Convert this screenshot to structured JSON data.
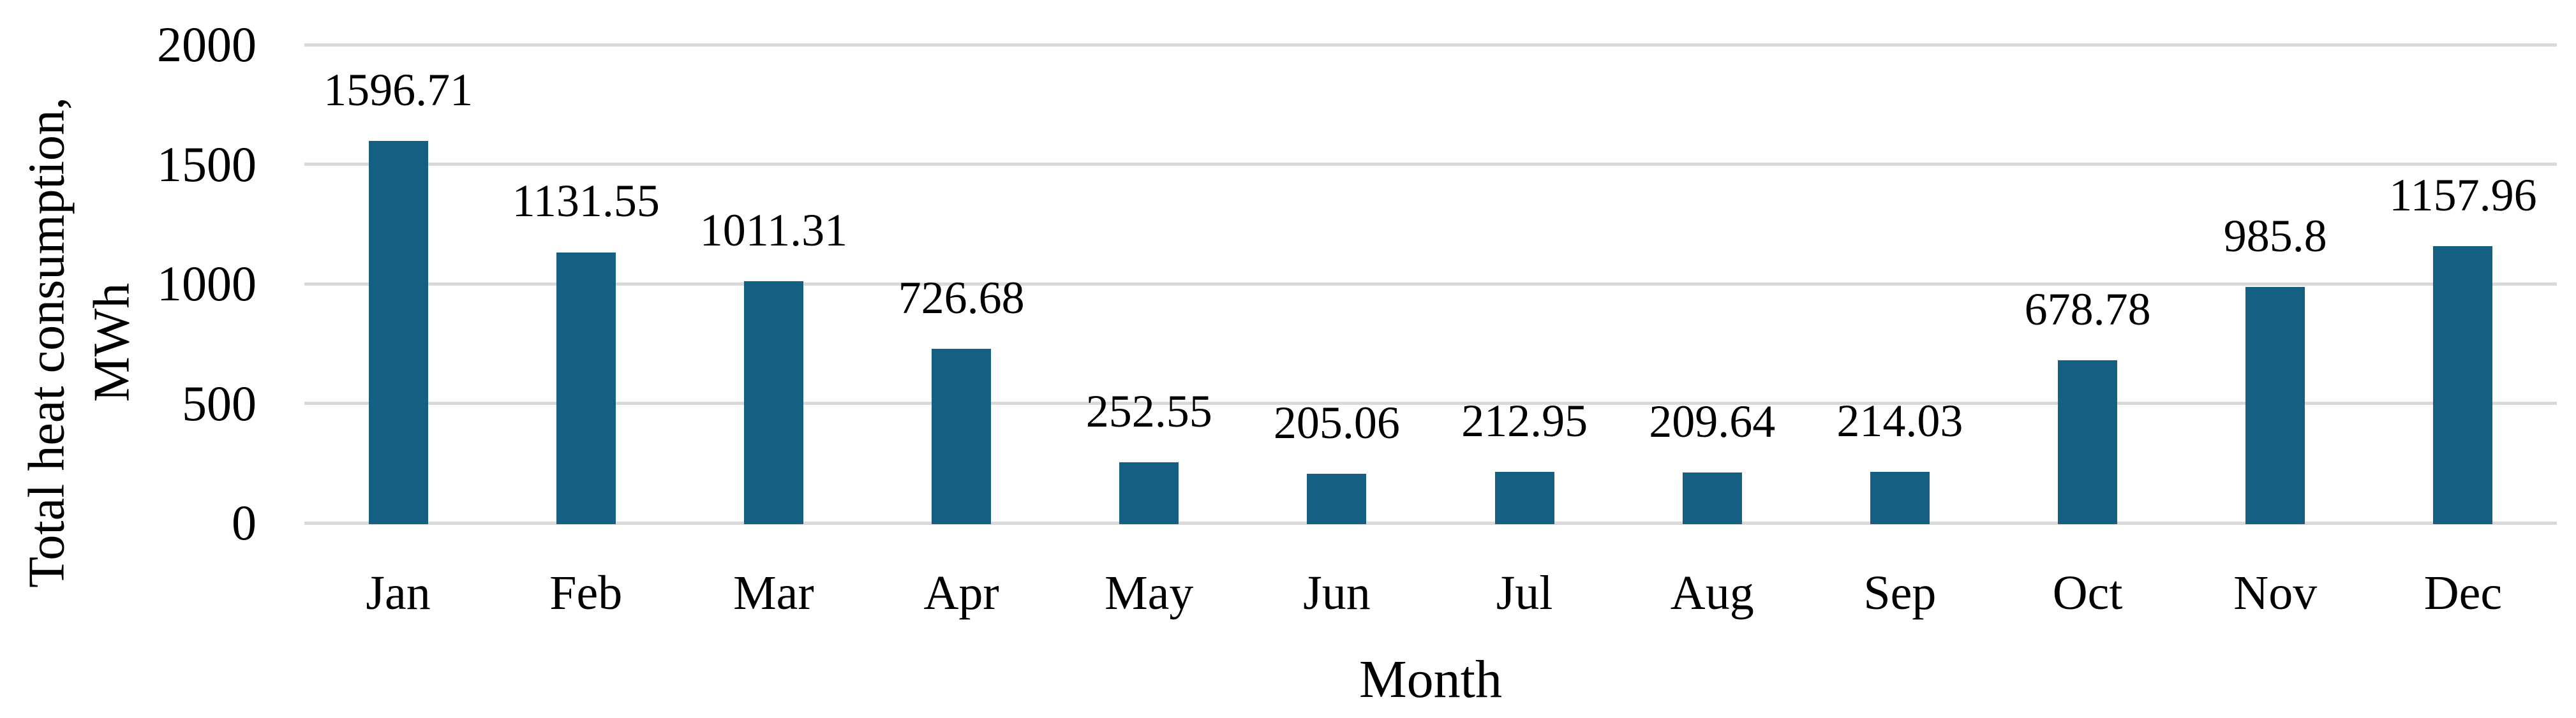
{
  "chart_data": {
    "type": "bar",
    "title": "",
    "categories": [
      "Jan",
      "Feb",
      "Mar",
      "Apr",
      "May",
      "Jun",
      "Jul",
      "Aug",
      "Sep",
      "Oct",
      "Nov",
      "Dec"
    ],
    "values": [
      1596.71,
      1131.55,
      1011.31,
      726.68,
      252.55,
      205.06,
      212.95,
      209.64,
      214.03,
      678.78,
      985.8,
      1157.96
    ],
    "value_labels": [
      "1596.71",
      "1131.55",
      "1011.31",
      "726.68",
      "252.55",
      "205.06",
      "212.95",
      "209.64",
      "214.03",
      "678.78",
      "985.8",
      "1157.96"
    ],
    "series_name": "Total heat consumption",
    "xlabel": "Month",
    "ylabel": "Total heat consumption, MWh",
    "ylabel_lines": [
      "Total heat consumption,",
      "MWh"
    ],
    "ylim": [
      0,
      2000
    ],
    "yticks": [
      0,
      500,
      1000,
      1500,
      2000
    ],
    "ytick_labels": [
      "0",
      "500",
      "1000",
      "1500",
      "2000"
    ],
    "grid": "horizontal",
    "legend": "none",
    "bar_color": "#156082",
    "gridline_color": "#D9D9D9",
    "text_color": "#000000",
    "background_color": "#FFFFFF"
  }
}
